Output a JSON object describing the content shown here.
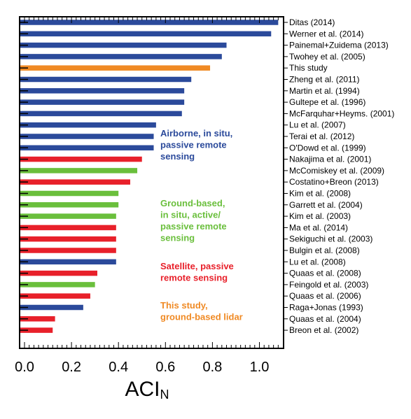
{
  "chart_data": {
    "type": "bar",
    "orientation": "horizontal",
    "xlabel": "ACI",
    "xlabel_subscript": "N",
    "xlim": [
      0,
      1.1
    ],
    "xticks": [
      "0.0",
      "0.2",
      "0.4",
      "0.6",
      "0.8",
      "1.0"
    ],
    "xtick_values": [
      0,
      0.2,
      0.4,
      0.6,
      0.8,
      1.0
    ],
    "grid": false,
    "legend_placement": "right-center inside plot",
    "colors": {
      "airborne": "#2b4a9b",
      "ground": "#6abf3c",
      "satellite": "#e8202a",
      "this_study": "#f08a24"
    },
    "legend": [
      {
        "key": "airborne",
        "lines": [
          "Airborne, in situ,",
          "passive remote",
          "sensing"
        ]
      },
      {
        "key": "ground",
        "lines": [
          "Ground-based,",
          "in situ, active/",
          "passive remote",
          "sensing"
        ]
      },
      {
        "key": "satellite",
        "lines": [
          "Satellite, passive",
          "remote sensing"
        ]
      },
      {
        "key": "this_study",
        "lines": [
          "This study,",
          "ground-based lidar"
        ]
      }
    ],
    "categories": [
      "Ditas (2014)",
      "Werner et al. (2014)",
      "Painemal+Zuidema (2013)",
      "Twohey et al. (2005)",
      "This study",
      "Zheng et al. (2011)",
      "Martin et al. (1994)",
      "Gultepe et al. (1996)",
      "McFarquhar+Heyms. (2001)",
      "Lu et al. (2007)",
      "Terai et al. (2012)",
      "O'Dowd et al. (1999)",
      "Nakajima et al. (2001)",
      "McComiskey et al. (2009)",
      "Costatino+Breon (2013)",
      "Kim et al. (2008)",
      "Garrett et al. (2004)",
      "Kim et al. (2003)",
      "Ma et al. (2014)",
      "Sekiguchi et al. (2003)",
      "Bulgin et al. (2008)",
      "Lu et al. (2008)",
      "Quaas et al. (2008)",
      "Feingold et al. (2003)",
      "Quaas et al. (2006)",
      "Raga+Jonas (1993)",
      "Quaas et al. (2004)",
      "Breon et al. (2002)"
    ],
    "values": [
      1.08,
      1.05,
      0.86,
      0.84,
      0.79,
      0.71,
      0.68,
      0.68,
      0.67,
      0.56,
      0.55,
      0.55,
      0.5,
      0.48,
      0.45,
      0.4,
      0.4,
      0.39,
      0.39,
      0.39,
      0.39,
      0.39,
      0.31,
      0.3,
      0.28,
      0.25,
      0.13,
      0.12
    ],
    "groups": [
      "airborne",
      "airborne",
      "airborne",
      "airborne",
      "this_study",
      "airborne",
      "airborne",
      "airborne",
      "airborne",
      "airborne",
      "airborne",
      "airborne",
      "satellite",
      "ground",
      "satellite",
      "ground",
      "ground",
      "ground",
      "satellite",
      "satellite",
      "satellite",
      "airborne",
      "satellite",
      "ground",
      "satellite",
      "airborne",
      "satellite",
      "satellite"
    ]
  }
}
